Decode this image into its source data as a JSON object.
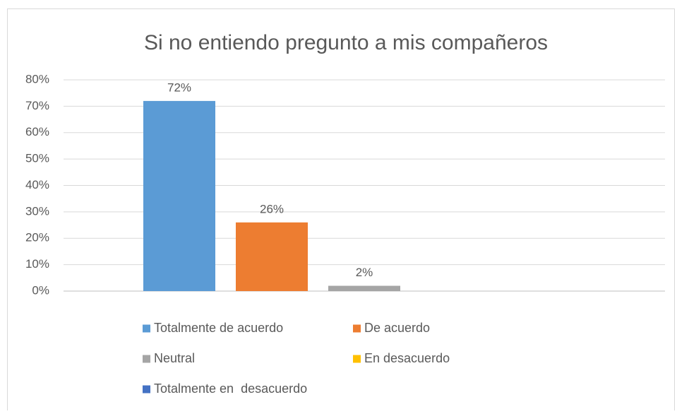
{
  "chart_data": {
    "type": "bar",
    "title": "Si no entiendo pregunto a mis compañeros",
    "categories": [
      null
    ],
    "series": [
      {
        "name": "Totalmente de acuerdo",
        "color": "#5b9bd5",
        "values": [
          72
        ],
        "value_labels": [
          "72%"
        ]
      },
      {
        "name": "De acuerdo",
        "color": "#ed7d31",
        "values": [
          26
        ],
        "value_labels": [
          "26%"
        ]
      },
      {
        "name": "Neutral",
        "color": "#a5a5a5",
        "values": [
          2
        ],
        "value_labels": [
          "2%"
        ]
      },
      {
        "name": "En desacuerdo",
        "color": "#ffc000",
        "values": [
          0
        ]
      },
      {
        "name": "Totalmente en  desacuerdo",
        "color": "#4472c4",
        "values": [
          0
        ]
      }
    ],
    "ylim": [
      0,
      80
    ],
    "yticks": [
      {
        "value": 0,
        "label": "0%"
      },
      {
        "value": 10,
        "label": "10%"
      },
      {
        "value": 20,
        "label": "20%"
      },
      {
        "value": 30,
        "label": "30%"
      },
      {
        "value": 40,
        "label": "40%"
      },
      {
        "value": 50,
        "label": "50%"
      },
      {
        "value": 60,
        "label": "60%"
      },
      {
        "value": 70,
        "label": "70%"
      },
      {
        "value": 80,
        "label": "80%"
      }
    ],
    "grid": true,
    "legend": "bottom"
  }
}
